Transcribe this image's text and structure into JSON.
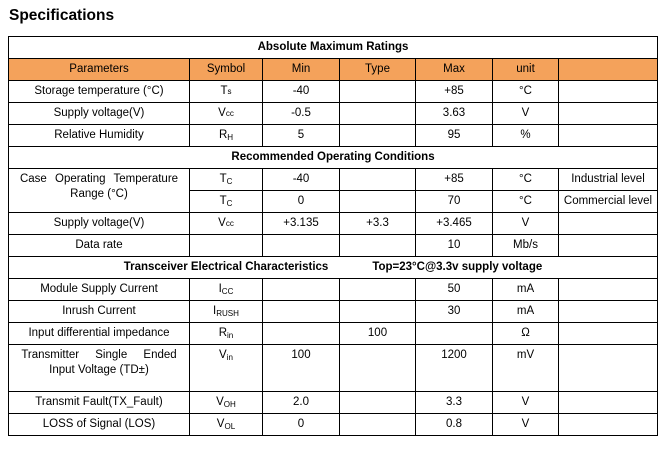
{
  "page": {
    "title": "Specifications"
  },
  "table": {
    "accent_color": "#F4A25B",
    "header": {
      "columns": [
        "Parameters",
        "Symbol",
        "Min",
        "Type",
        "Max",
        "unit",
        ""
      ]
    },
    "sections": [
      {
        "title": "Absolute Maximum Ratings",
        "subtitle": "",
        "header_row": true,
        "rows": [
          {
            "cells": [
              {
                "t": "Storage temperature (°C)",
                "cls": "param"
              },
              {
                "sym": {
                  "base": "T",
                  "sub": "s",
                  "drop": false
                }
              },
              {
                "t": "-40"
              },
              {
                "t": ""
              },
              {
                "t": "+85"
              },
              {
                "t": "°C"
              },
              {
                "t": ""
              }
            ]
          },
          {
            "cells": [
              {
                "t": "Supply voltage(V)",
                "cls": "param"
              },
              {
                "sym": {
                  "base": "V",
                  "sub": "cc",
                  "drop": false
                }
              },
              {
                "t": "-0.5"
              },
              {
                "t": ""
              },
              {
                "t": "3.63"
              },
              {
                "t": "V"
              },
              {
                "t": ""
              }
            ]
          },
          {
            "cells": [
              {
                "t": "Relative Humidity",
                "cls": "param"
              },
              {
                "sym": {
                  "base": "R",
                  "sub": "H",
                  "drop": true
                }
              },
              {
                "t": "5"
              },
              {
                "t": ""
              },
              {
                "t": "95"
              },
              {
                "t": "%"
              },
              {
                "t": ""
              }
            ]
          }
        ]
      },
      {
        "title": "Recommended Operating Conditions",
        "subtitle": "",
        "header_row": false,
        "rows": [
          {
            "cells": [
              {
                "t": "Case Operating Temperature\nRange (°C)",
                "cls": "param jw1 top",
                "rowspan": 2
              },
              {
                "sym": {
                  "base": "T",
                  "sub": "C",
                  "drop": true
                }
              },
              {
                "t": "-40"
              },
              {
                "t": ""
              },
              {
                "t": "+85"
              },
              {
                "t": "°C"
              },
              {
                "t": "Industrial level",
                "cls": "note"
              }
            ]
          },
          {
            "cells": [
              {
                "sym": {
                  "base": "T",
                  "sub": "C",
                  "drop": true
                },
                "cls": "top"
              },
              {
                "t": "0",
                "cls": "top"
              },
              {
                "t": "",
                "cls": "top"
              },
              {
                "t": "70",
                "cls": "top"
              },
              {
                "t": "°C",
                "cls": "top"
              },
              {
                "t": "Commercial level",
                "cls": "note tall"
              }
            ]
          },
          {
            "cells": [
              {
                "t": "Supply voltage(V)",
                "cls": "param"
              },
              {
                "sym": {
                  "base": "V",
                  "sub": "cc",
                  "drop": false
                }
              },
              {
                "t": "+3.135"
              },
              {
                "t": "+3.3"
              },
              {
                "t": "+3.465"
              },
              {
                "t": "V"
              },
              {
                "t": ""
              }
            ]
          },
          {
            "cells": [
              {
                "t": "Data rate",
                "cls": "param"
              },
              {
                "t": ""
              },
              {
                "t": ""
              },
              {
                "t": ""
              },
              {
                "t": "10"
              },
              {
                "t": "Mb/s"
              },
              {
                "t": ""
              }
            ]
          }
        ]
      },
      {
        "title": "Transceiver Electrical Characteristics",
        "subtitle": "Top=23°C@3.3v supply voltage",
        "header_row": false,
        "rows": [
          {
            "cells": [
              {
                "t": "Module Supply Current",
                "cls": "param"
              },
              {
                "sym": {
                  "base": "I",
                  "sub": "CC",
                  "drop": true
                }
              },
              {
                "t": ""
              },
              {
                "t": ""
              },
              {
                "t": "50"
              },
              {
                "t": "mA"
              },
              {
                "t": ""
              }
            ]
          },
          {
            "cells": [
              {
                "t": "Inrush Current",
                "cls": "param"
              },
              {
                "sym": {
                  "base": "I",
                  "sub": "RUSH",
                  "drop": true
                }
              },
              {
                "t": ""
              },
              {
                "t": ""
              },
              {
                "t": "30"
              },
              {
                "t": "mA"
              },
              {
                "t": ""
              }
            ]
          },
          {
            "cells": [
              {
                "t": "Input differential impedance",
                "cls": "param"
              },
              {
                "sym": {
                  "base": "R",
                  "sub": "in",
                  "drop": true
                }
              },
              {
                "t": ""
              },
              {
                "t": "100"
              },
              {
                "t": ""
              },
              {
                "t": "Ω"
              },
              {
                "t": ""
              }
            ]
          },
          {
            "cls": "vtop",
            "cells": [
              {
                "t": "Transmitter Single Ended\nInput Voltage (TD±)",
                "cls": "param jw2 pb"
              },
              {
                "sym": {
                  "base": "V",
                  "sub": "in",
                  "drop": true
                }
              },
              {
                "t": "100"
              },
              {
                "t": ""
              },
              {
                "t": "1200"
              },
              {
                "t": "mV"
              },
              {
                "t": ""
              }
            ]
          },
          {
            "cells": [
              {
                "t": "Transmit Fault(TX_Fault)",
                "cls": "param"
              },
              {
                "sym": {
                  "base": "V",
                  "sub": "OH",
                  "drop": true
                }
              },
              {
                "t": "2.0"
              },
              {
                "t": ""
              },
              {
                "t": "3.3"
              },
              {
                "t": "V"
              },
              {
                "t": ""
              }
            ]
          },
          {
            "cells": [
              {
                "t": "LOSS of Signal (LOS)",
                "cls": "param"
              },
              {
                "sym": {
                  "base": "V",
                  "sub": "OL",
                  "drop": true
                }
              },
              {
                "t": "0"
              },
              {
                "t": ""
              },
              {
                "t": "0.8"
              },
              {
                "t": "V"
              },
              {
                "t": ""
              }
            ]
          }
        ]
      }
    ]
  }
}
